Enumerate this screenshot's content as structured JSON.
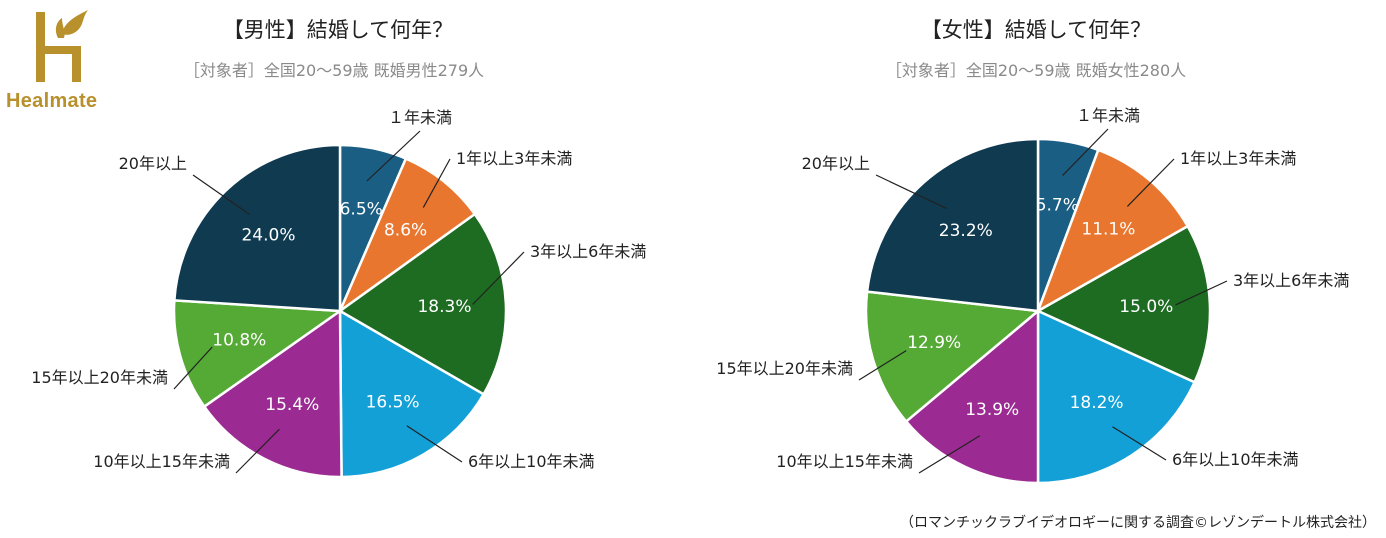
{
  "logo": {
    "text": "Healmate"
  },
  "credit": "（ロマンチックラブイデオロギーに関する調査©レゾンデートル株式会社）",
  "chart_data": [
    {
      "type": "pie",
      "title": "【男性】結婚して何年？",
      "subtitle": "［対象者］全国20～59歳 既婚男性279人",
      "labels": [
        "１年未満",
        "1年以上3年未満",
        "3年以上6年未満",
        "6年以上10年未満",
        "10年以上15年未満",
        "15年以上20年未満",
        "20年以上"
      ],
      "values": [
        6.5,
        8.6,
        18.3,
        16.5,
        15.4,
        10.8,
        24.0
      ],
      "value_labels": [
        "6.5%",
        "8.6%",
        "18.3%",
        "16.5%",
        "15.4%",
        "10.8%",
        "24.0%"
      ],
      "colors": [
        "#1b5e83",
        "#e8762f",
        "#1e6b22",
        "#12a0d7",
        "#9b2b92",
        "#55a935",
        "#0f3a50"
      ]
    },
    {
      "type": "pie",
      "title": "【女性】結婚して何年？",
      "subtitle": "［対象者］全国20～59歳 既婚女性280人",
      "labels": [
        "１年未満",
        "1年以上3年未満",
        "3年以上6年未満",
        "6年以上10年未満",
        "10年以上15年未満",
        "15年以上20年未満",
        "20年以上"
      ],
      "values": [
        5.7,
        11.1,
        15.0,
        18.2,
        13.9,
        12.9,
        23.2
      ],
      "value_labels": [
        "5.7%",
        "11.1%",
        "15.0%",
        "18.2%",
        "13.9%",
        "12.9%",
        "23.2%"
      ],
      "colors": [
        "#1b5e83",
        "#e8762f",
        "#1e6b22",
        "#12a0d7",
        "#9b2b92",
        "#55a935",
        "#0f3a50"
      ]
    }
  ]
}
